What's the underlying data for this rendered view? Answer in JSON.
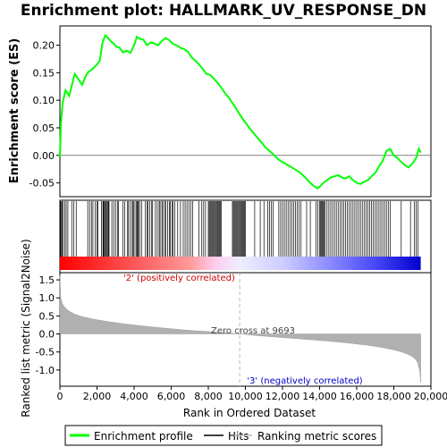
{
  "chart_data": {
    "type": "line",
    "title": "Enrichment plot: HALLMARK_UV_RESPONSE_DN",
    "es_panel": {
      "ylabel": "Enrichment score (ES)",
      "ylim": [
        -0.075,
        0.235
      ],
      "yticks": [
        -0.05,
        0.0,
        0.05,
        0.1,
        0.15,
        0.2
      ],
      "ytick_labels": [
        "-0.05",
        "0.00",
        "0.05",
        "0.10",
        "0.15",
        "0.20"
      ],
      "series": [
        {
          "name": "Enrichment profile",
          "color": "#00ff00",
          "x": [
            0,
            60,
            150,
            300,
            500,
            650,
            800,
            1000,
            1200,
            1400,
            1550,
            1700,
            1850,
            2000,
            2150,
            2300,
            2450,
            2600,
            2750,
            2900,
            3050,
            3200,
            3400,
            3600,
            3800,
            4000,
            4150,
            4300,
            4500,
            4700,
            4900,
            5100,
            5300,
            5500,
            5700,
            5900,
            6100,
            6300,
            6500,
            6700,
            6900,
            7100,
            7300,
            7500,
            7700,
            7900,
            8100,
            8300,
            8500,
            8700,
            8900,
            9100,
            9300,
            9500,
            9700,
            9900,
            10100,
            10300,
            10500,
            10700,
            10900,
            11100,
            11300,
            11500,
            11700,
            11900,
            12100,
            12300,
            12500,
            12700,
            12900,
            13100,
            13300,
            13500,
            13700,
            13900,
            14000,
            14200,
            14400,
            14600,
            14800,
            15000,
            15200,
            15400,
            15600,
            15800,
            16000,
            16200,
            16400,
            16600,
            16800,
            17000,
            17200,
            17400,
            17600,
            17800,
            18000,
            18200,
            18400,
            18600,
            18800,
            19000,
            19200,
            19350,
            19450
          ],
          "y": [
            -0.003,
            0.06,
            0.095,
            0.118,
            0.108,
            0.128,
            0.148,
            0.138,
            0.128,
            0.145,
            0.152,
            0.155,
            0.16,
            0.165,
            0.172,
            0.205,
            0.218,
            0.213,
            0.207,
            0.203,
            0.197,
            0.196,
            0.187,
            0.19,
            0.186,
            0.2,
            0.215,
            0.212,
            0.21,
            0.2,
            0.205,
            0.203,
            0.2,
            0.208,
            0.213,
            0.209,
            0.202,
            0.2,
            0.195,
            0.193,
            0.188,
            0.178,
            0.172,
            0.165,
            0.157,
            0.148,
            0.146,
            0.139,
            0.132,
            0.123,
            0.113,
            0.105,
            0.095,
            0.085,
            0.074,
            0.064,
            0.055,
            0.046,
            0.038,
            0.03,
            0.022,
            0.014,
            0.008,
            0.002,
            -0.005,
            -0.01,
            -0.014,
            -0.018,
            -0.022,
            -0.026,
            -0.03,
            -0.036,
            -0.043,
            -0.05,
            -0.056,
            -0.06,
            -0.057,
            -0.05,
            -0.045,
            -0.04,
            -0.038,
            -0.036,
            -0.04,
            -0.042,
            -0.038,
            -0.045,
            -0.05,
            -0.052,
            -0.048,
            -0.045,
            -0.038,
            -0.032,
            -0.02,
            -0.01,
            0.008,
            0.012,
            0.0,
            -0.005,
            -0.012,
            -0.018,
            -0.022,
            -0.015,
            -0.005,
            0.012,
            0.005
          ]
        }
      ]
    },
    "hits_panel": {
      "hit_ranks": [
        30,
        70,
        120,
        170,
        260,
        340,
        430,
        640,
        750,
        880,
        1500,
        1600,
        1700,
        1780,
        1900,
        2000,
        2050,
        2240,
        2320,
        2350,
        2380,
        2430,
        2480,
        2520,
        2570,
        2620,
        2650,
        2800,
        2900,
        3000,
        3100,
        3150,
        3400,
        3500,
        3650,
        3700,
        3800,
        3900,
        3950,
        4000,
        4100,
        4150,
        4200,
        4230,
        4300,
        4400,
        4600,
        4700,
        4750,
        4850,
        4950,
        5000,
        5150,
        5250,
        5350,
        5400,
        5500,
        5550,
        5650,
        5700,
        5800,
        5900,
        5950,
        6050,
        6100,
        6200,
        6350,
        6500,
        6650,
        6750,
        6850,
        6950,
        7050,
        7150,
        7500,
        7650,
        7750,
        7850,
        8000,
        8050,
        8100,
        8150,
        8200,
        8250,
        8300,
        8350,
        8400,
        8450,
        8500,
        8550,
        8600,
        8650,
        8700,
        9300,
        9350,
        9400,
        9450,
        9500,
        9550,
        9600,
        9650,
        9700,
        9750,
        9800,
        9850,
        9900,
        9950,
        10000,
        10500,
        10800,
        11000,
        11200,
        11300,
        11400,
        11500,
        11800,
        11900,
        12000,
        12100,
        12200,
        12300,
        12400,
        12500,
        12600,
        12700,
        12800,
        12900,
        13000,
        13300,
        13500,
        13800,
        13900,
        14000,
        14050,
        14100,
        14150,
        14200,
        14250,
        14300,
        14400,
        14500,
        14600,
        14700,
        14800,
        14900,
        15000,
        15100,
        15200,
        15300,
        15400,
        15500,
        15600,
        15700,
        15800,
        15900,
        16000,
        16100,
        16200,
        16300,
        16400,
        16500,
        16600,
        16700,
        16800,
        16900,
        17000,
        17100,
        17200,
        17300,
        17400,
        17500,
        17600,
        17700,
        17800,
        18400,
        18900,
        19100,
        19200,
        19300
      ]
    },
    "rank_panel": {
      "ylabel": "Ranked list metric (Signal2Noise)",
      "ylim": [
        -1.45,
        1.7
      ],
      "yticks": [
        -1.0,
        -0.5,
        0.0,
        0.5,
        1.0,
        1.5
      ],
      "ytick_labels": [
        "-1.0",
        "-0.5",
        "0.0",
        "0.5",
        "1.0",
        "1.5"
      ],
      "x": [
        0,
        50,
        150,
        300,
        500,
        800,
        1200,
        1800,
        2500,
        3500,
        4500,
        5500,
        6500,
        7500,
        8500,
        9000,
        9693,
        10500,
        11500,
        12500,
        13500,
        14500,
        15500,
        16500,
        17200,
        17800,
        18300,
        18700,
        19000,
        19200,
        19300,
        19400,
        19450
      ],
      "values": [
        1.62,
        1.0,
        0.82,
        0.72,
        0.63,
        0.55,
        0.48,
        0.41,
        0.35,
        0.28,
        0.22,
        0.17,
        0.12,
        0.08,
        0.05,
        0.03,
        0.0,
        -0.04,
        -0.08,
        -0.12,
        -0.16,
        -0.2,
        -0.25,
        -0.31,
        -0.36,
        -0.42,
        -0.48,
        -0.55,
        -0.63,
        -0.72,
        -0.82,
        -1.05,
        -1.35
      ],
      "color": "#b0b0b0",
      "annotations": {
        "zero_cross": "Zero cross at 9693",
        "positive": "'2' (positively correlated)",
        "negative": "'3' (negatively correlated)"
      }
    },
    "xlabel": "Rank in Ordered Dataset",
    "xlim": [
      0,
      20000
    ],
    "xticks": [
      0,
      2000,
      4000,
      6000,
      8000,
      10000,
      12000,
      14000,
      16000,
      18000,
      20000
    ],
    "xtick_labels": [
      "0",
      "2,000",
      "4,000",
      "6,000",
      "8,000",
      "10,000",
      "12,000",
      "14,000",
      "16,000",
      "18,000",
      "20,000"
    ],
    "n_genes": 19450,
    "zero_cross_rank": 9693,
    "legend": {
      "placement": "bottom",
      "entries": [
        {
          "label": "Enrichment profile",
          "color": "#00ff00"
        },
        {
          "label": "Hits",
          "color": "#000000"
        },
        {
          "label": "Ranking metric scores",
          "color": "#c0c0c0"
        }
      ]
    }
  }
}
